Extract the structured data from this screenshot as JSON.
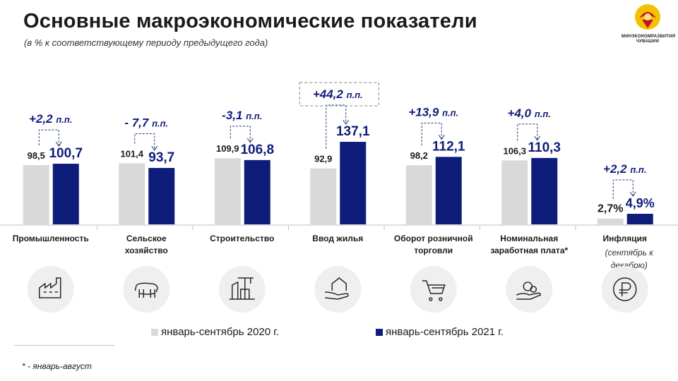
{
  "header": {
    "title": "Основные макроэкономические показатели",
    "subtitle": "(в % к соответствующему периоду предыдущего года)",
    "logo_lines": [
      "МИНЭКОНОМРАЗВИТИЯ",
      "ЧУВАШИИ"
    ]
  },
  "colors": {
    "series_2020": "#d9d9d9",
    "series_2021": "#0f1d7a",
    "arrow": "#203b78"
  },
  "chart_data": {
    "type": "bar",
    "categories": [
      "Промышленность",
      "Сельское хозяйство",
      "Строительство",
      "Ввод жилья",
      "Оборот розничной торговли",
      "Номинальная заработная плата*",
      "Инфляция"
    ],
    "category_note": "(сентябрь к декабрю)",
    "series": [
      {
        "name": "январь-сентябрь 2020 г.",
        "values": [
          98.5,
          101.4,
          109.9,
          92.9,
          98.2,
          106.3,
          2.7
        ],
        "labels": [
          "98,5",
          "101,4",
          "109,9",
          "92,9",
          "98,2",
          "106,3",
          "2,7%"
        ]
      },
      {
        "name": "январь-сентябрь 2021 г.",
        "values": [
          100.7,
          93.7,
          106.8,
          137.1,
          112.1,
          110.3,
          4.9
        ],
        "labels": [
          "100,7",
          "93,7",
          "106,8",
          "137,1",
          "112,1",
          "110,3",
          "4,9%"
        ]
      }
    ],
    "changes": [
      "+2,2",
      "- 7,7",
      "-3,1",
      "+44,2",
      "+13,9",
      "+4,0",
      "+2,2"
    ],
    "change_unit": "п.п.",
    "icons": [
      "factory-icon",
      "cow-icon",
      "construction-crane-icon",
      "house-in-hand-icon",
      "shopping-cart-icon",
      "coins-in-hand-icon",
      "ruble-icon"
    ]
  },
  "footnote": "* - январь-август"
}
